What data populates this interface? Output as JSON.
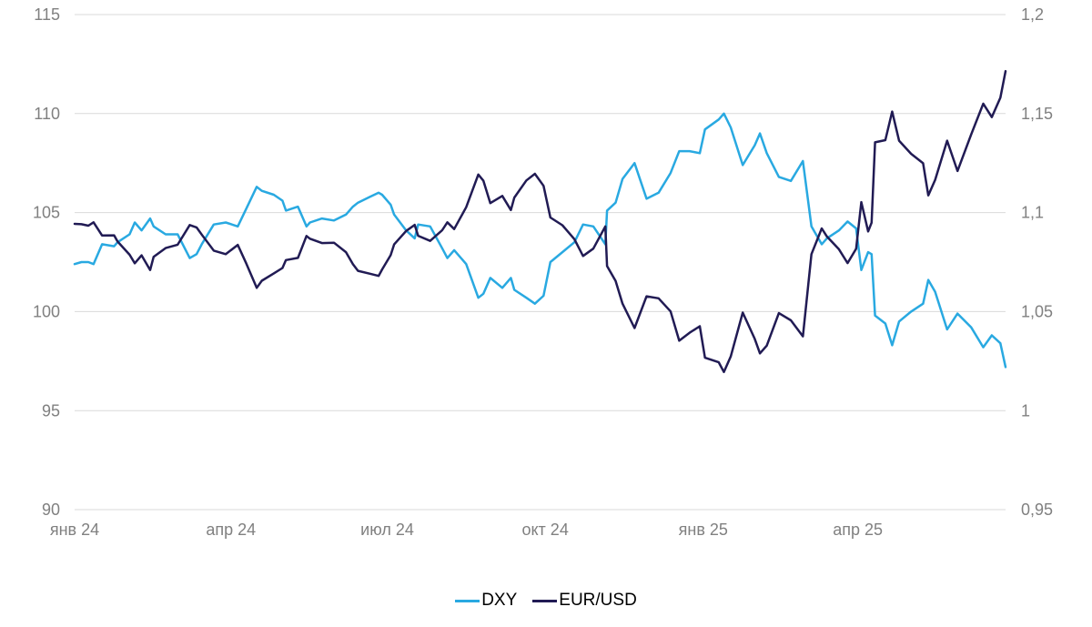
{
  "chart_data": {
    "type": "line",
    "title": "",
    "grid": "horizontal-only",
    "legend_position": "bottom-center",
    "x_axis": {
      "tick_labels": [
        "янв 24",
        "апр 24",
        "июл 24",
        "окт 24",
        "янв 25",
        "апр 25"
      ],
      "tick_dates": [
        "2024-01-01",
        "2024-04-01",
        "2024-07-01",
        "2024-10-01",
        "2025-01-01",
        "2025-04-01"
      ],
      "range": [
        "2024-01-01",
        "2025-06-26"
      ]
    },
    "y_axis_left": {
      "series": "DXY",
      "ticks": [
        115,
        110,
        105,
        100,
        95,
        90
      ],
      "tick_labels": [
        "115",
        "110",
        "105",
        "100",
        "95",
        "90"
      ],
      "range": [
        90,
        115
      ]
    },
    "y_axis_right": {
      "series": "EUR/USD",
      "ticks": [
        1.2,
        1.15,
        1.1,
        1.05,
        1.0,
        0.95
      ],
      "tick_labels": [
        "1,2",
        "1,15",
        "1,1",
        "1,05",
        "1",
        "0,95"
      ],
      "range": [
        0.95,
        1.2
      ]
    },
    "dates": [
      "2024-01-01",
      "2024-01-05",
      "2024-01-09",
      "2024-01-12",
      "2024-01-17",
      "2024-01-24",
      "2024-01-26",
      "2024-02-02",
      "2024-02-05",
      "2024-02-09",
      "2024-02-14",
      "2024-02-16",
      "2024-02-23",
      "2024-03-01",
      "2024-03-08",
      "2024-03-12",
      "2024-03-15",
      "2024-03-22",
      "2024-03-29",
      "2024-04-05",
      "2024-04-10",
      "2024-04-16",
      "2024-04-19",
      "2024-04-26",
      "2024-05-01",
      "2024-05-03",
      "2024-05-10",
      "2024-05-15",
      "2024-05-17",
      "2024-05-24",
      "2024-05-31",
      "2024-06-07",
      "2024-06-11",
      "2024-06-14",
      "2024-06-21",
      "2024-06-26",
      "2024-06-28",
      "2024-07-03",
      "2024-07-05",
      "2024-07-12",
      "2024-07-17",
      "2024-07-19",
      "2024-07-26",
      "2024-08-02",
      "2024-08-05",
      "2024-08-09",
      "2024-08-16",
      "2024-08-23",
      "2024-08-26",
      "2024-08-30",
      "2024-09-06",
      "2024-09-11",
      "2024-09-13",
      "2024-09-20",
      "2024-09-25",
      "2024-09-30",
      "2024-10-04",
      "2024-10-11",
      "2024-10-18",
      "2024-10-23",
      "2024-10-29",
      "2024-11-05",
      "2024-11-06",
      "2024-11-11",
      "2024-11-15",
      "2024-11-22",
      "2024-11-29",
      "2024-12-06",
      "2024-12-13",
      "2024-12-18",
      "2024-12-24",
      "2024-12-30",
      "2025-01-02",
      "2025-01-10",
      "2025-01-13",
      "2025-01-17",
      "2025-01-24",
      "2025-01-31",
      "2025-02-03",
      "2025-02-07",
      "2025-02-14",
      "2025-02-21",
      "2025-02-28",
      "2025-03-05",
      "2025-03-11",
      "2025-03-14",
      "2025-03-21",
      "2025-03-26",
      "2025-03-31",
      "2025-04-03",
      "2025-04-07",
      "2025-04-09",
      "2025-04-11",
      "2025-04-17",
      "2025-04-21",
      "2025-04-25",
      "2025-05-02",
      "2025-05-09",
      "2025-05-12",
      "2025-05-16",
      "2025-05-23",
      "2025-05-29",
      "2025-06-06",
      "2025-06-13",
      "2025-06-18",
      "2025-06-23",
      "2025-06-26"
    ],
    "series": [
      {
        "name": "DXY",
        "axis": "left",
        "color": "#29A9E1",
        "values": [
          102.4,
          102.5,
          102.5,
          102.4,
          103.4,
          103.3,
          103.5,
          103.9,
          104.5,
          104.1,
          104.7,
          104.3,
          103.9,
          103.9,
          102.7,
          102.9,
          103.4,
          104.4,
          104.5,
          104.3,
          105.2,
          106.3,
          106.1,
          105.9,
          105.6,
          105.1,
          105.3,
          104.3,
          104.5,
          104.7,
          104.6,
          104.9,
          105.3,
          105.5,
          105.8,
          106.0,
          105.9,
          105.4,
          104.9,
          104.1,
          103.7,
          104.4,
          104.3,
          103.2,
          102.7,
          103.1,
          102.4,
          100.7,
          100.9,
          101.7,
          101.2,
          101.7,
          101.1,
          100.7,
          100.4,
          100.8,
          102.5,
          103.0,
          103.5,
          104.4,
          104.3,
          103.4,
          105.1,
          105.5,
          106.7,
          107.5,
          105.7,
          106.0,
          107.0,
          108.1,
          108.1,
          108.0,
          109.2,
          109.7,
          110.0,
          109.3,
          107.4,
          108.4,
          109.0,
          108.0,
          106.8,
          106.6,
          107.6,
          104.3,
          103.4,
          103.7,
          104.1,
          104.55,
          104.2,
          102.1,
          103.0,
          102.9,
          99.8,
          99.4,
          98.3,
          99.5,
          100.0,
          100.4,
          101.6,
          101.0,
          99.1,
          99.9,
          99.2,
          98.2,
          98.8,
          98.4,
          97.2
        ]
      },
      {
        "name": "EUR/USD",
        "axis": "right",
        "color": "#211B54",
        "values": [
          1.0943,
          1.0941,
          1.0934,
          1.0951,
          1.0884,
          1.0885,
          1.0854,
          1.0787,
          1.0744,
          1.0784,
          1.071,
          1.0776,
          1.0821,
          1.0838,
          1.0937,
          1.0925,
          1.0889,
          1.0808,
          1.079,
          1.0837,
          1.0742,
          1.062,
          1.0656,
          1.0693,
          1.072,
          1.076,
          1.0771,
          1.0882,
          1.0868,
          1.0846,
          1.0848,
          1.08,
          1.074,
          1.0706,
          1.0691,
          1.068,
          1.0713,
          1.0785,
          1.0839,
          1.0907,
          1.0938,
          1.0883,
          1.0857,
          1.0911,
          1.0951,
          1.0917,
          1.1027,
          1.1192,
          1.1161,
          1.1048,
          1.1084,
          1.1013,
          1.1076,
          1.1162,
          1.1196,
          1.1135,
          1.0975,
          1.0936,
          1.0866,
          1.0781,
          1.0818,
          1.093,
          1.073,
          1.0655,
          1.054,
          1.0417,
          1.0577,
          1.0567,
          1.0501,
          1.0353,
          1.0393,
          1.0426,
          1.0267,
          1.0244,
          1.0195,
          1.0273,
          1.0495,
          1.0362,
          1.0289,
          1.0328,
          1.0492,
          1.0456,
          1.0375,
          1.079,
          1.092,
          1.0879,
          1.0815,
          1.0745,
          1.0817,
          1.1053,
          1.0905,
          1.0949,
          1.1355,
          1.1366,
          1.151,
          1.1363,
          1.1297,
          1.1249,
          1.1087,
          1.1165,
          1.1363,
          1.121,
          1.1395,
          1.155,
          1.1482,
          1.158,
          1.1714
        ]
      }
    ],
    "colors": {
      "grid": "#D9D9D9",
      "axis_text": "#808080",
      "background": "#FFFFFF",
      "legend_text": "#000000"
    }
  }
}
